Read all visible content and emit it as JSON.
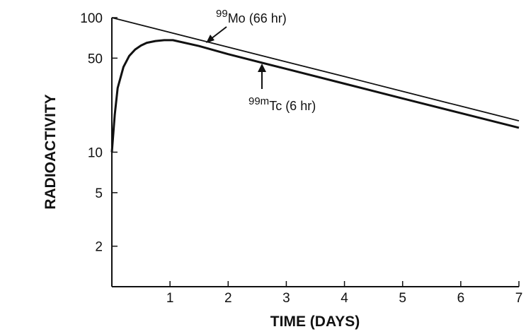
{
  "chart_data": {
    "type": "line",
    "title": "",
    "xlabel": "TIME (DAYS)",
    "ylabel": "RADIOACTIVITY",
    "yscale": "log",
    "xlim": [
      0,
      7
    ],
    "ylim": [
      1,
      100
    ],
    "xticks": [
      1,
      2,
      3,
      4,
      5,
      6,
      7
    ],
    "yticks": [
      2,
      5,
      10,
      50,
      100
    ],
    "grid": false,
    "legend": "none",
    "series": [
      {
        "x": [
          0,
          1,
          2,
          3,
          4,
          5,
          6,
          7
        ],
        "values": [
          100,
          77.7,
          60.4,
          46.9,
          36.5,
          28.3,
          22.0,
          17.1
        ]
      },
      {
        "x": [
          0,
          0.05,
          0.1,
          0.2,
          0.3,
          0.4,
          0.5,
          0.6,
          0.75,
          0.9,
          1.05,
          1.5,
          2,
          3,
          4,
          5,
          6,
          7
        ],
        "values": [
          10,
          19,
          30,
          43,
          52,
          58,
          62,
          65,
          67,
          68,
          68,
          61.5,
          53.5,
          41.6,
          32.3,
          25.1,
          19.5,
          15.2
        ]
      }
    ],
    "annotations": [
      {
        "sup": "99",
        "base": "Mo (66 hr)"
      },
      {
        "sup": "99m",
        "base": "Tc (6 hr)"
      }
    ]
  }
}
